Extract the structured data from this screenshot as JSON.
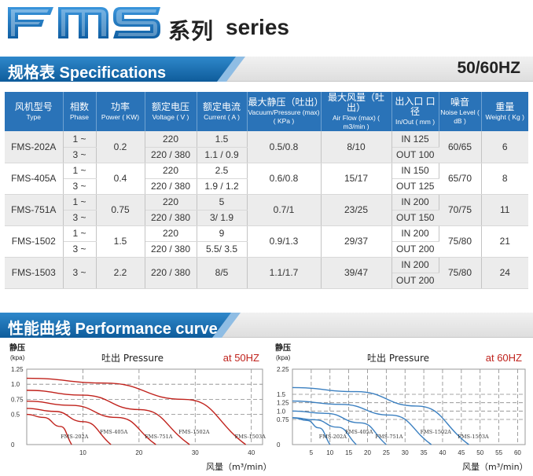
{
  "header": {
    "logo_text": "FMS",
    "title_cn": "系列",
    "title_en": "series"
  },
  "spec_section": {
    "title": "规格表 Specifications",
    "frequency": "50/60HZ"
  },
  "table": {
    "headers": [
      {
        "cn": "风机型号",
        "en": "Type"
      },
      {
        "cn": "相数",
        "en": "Phase"
      },
      {
        "cn": "功率",
        "en": "Power ( KW)"
      },
      {
        "cn": "额定电压",
        "en": "Voltage ( V )"
      },
      {
        "cn": "额定电流",
        "en": "Current ( A )"
      },
      {
        "cn": "最大静压（吐出）",
        "en": "Vacuum/Pressure (max) ( KPa )"
      },
      {
        "cn": "最大风量（吐出）",
        "en": "Air Flow (max) ( m3/min )"
      },
      {
        "cn": "出入口 口径",
        "en": "In/Out ( mm )"
      },
      {
        "cn": "噪音",
        "en": "Noise Level ( dB )"
      },
      {
        "cn": "重量",
        "en": "Weight ( Kg )"
      }
    ],
    "rows": [
      {
        "type": "FMS-202A",
        "phase": [
          "1 ~",
          "3 ~"
        ],
        "power": "0.2",
        "voltage": [
          "220",
          "220 / 380"
        ],
        "current": [
          "1.5",
          "1.1 / 0.9"
        ],
        "pressure": "0.5/0.8",
        "airflow": "8/10",
        "inout": [
          "IN 125",
          "OUT 100"
        ],
        "noise": "60/65",
        "weight": "6"
      },
      {
        "type": "FMS-405A",
        "phase": [
          "1 ~",
          "3 ~"
        ],
        "power": "0.4",
        "voltage": [
          "220",
          "220 / 380"
        ],
        "current": [
          "2.5",
          "1.9 / 1.2"
        ],
        "pressure": "0.6/0.8",
        "airflow": "15/17",
        "inout": [
          "IN 150",
          "OUT 125"
        ],
        "noise": "65/70",
        "weight": "8"
      },
      {
        "type": "FMS-751A",
        "phase": [
          "1 ~",
          "3 ~"
        ],
        "power": "0.75",
        "voltage": [
          "220",
          "220 / 380"
        ],
        "current": [
          "5",
          "3/ 1.9"
        ],
        "pressure": "0.7/1",
        "airflow": "23/25",
        "inout": [
          "IN 200",
          "OUT 150"
        ],
        "noise": "70/75",
        "weight": "11"
      },
      {
        "type": "FMS-1502",
        "phase": [
          "1 ~",
          "3 ~"
        ],
        "power": "1.5",
        "voltage": [
          "220",
          "220 / 380"
        ],
        "current": [
          "9",
          "5.5/ 3.5"
        ],
        "pressure": "0.9/1.3",
        "airflow": "29/37",
        "inout": [
          "IN 200",
          "OUT 200"
        ],
        "noise": "75/80",
        "weight": "21"
      },
      {
        "type": "FMS-1503",
        "phase": [
          "3 ~"
        ],
        "power": "2.2",
        "voltage": [
          "220 / 380"
        ],
        "current": [
          "8/5"
        ],
        "pressure": "1.1/1.7",
        "airflow": "39/47",
        "inout": [
          "IN 200",
          "OUT 200"
        ],
        "noise": "75/80",
        "weight": "24"
      }
    ]
  },
  "perf_section": {
    "title": "性能曲线 Performance curve"
  },
  "chart_data": [
    {
      "type": "line",
      "title": "吐出 Pressure",
      "frequency_label": "at 50HZ",
      "ylabel": "静压",
      "ylabel_unit": "(kpa)",
      "xlabel": "风量（m³/min）",
      "xlim": [
        0,
        42
      ],
      "ylim": [
        0,
        1.25
      ],
      "xticks": [
        "10",
        "20",
        "30",
        "40"
      ],
      "yticks": [
        "0",
        "0.5",
        "0.75",
        "1.0",
        "1.25"
      ],
      "grid": true,
      "color": "#c0221c",
      "series": [
        {
          "name": "FMS-202A",
          "x": [
            0,
            3,
            6,
            8
          ],
          "y": [
            0.5,
            0.45,
            0.3,
            0
          ]
        },
        {
          "name": "FMS-405A",
          "x": [
            0,
            5,
            10,
            15
          ],
          "y": [
            0.6,
            0.55,
            0.38,
            0
          ]
        },
        {
          "name": "FMS-751A",
          "x": [
            0,
            8,
            16,
            23
          ],
          "y": [
            0.72,
            0.65,
            0.45,
            0
          ]
        },
        {
          "name": "FMS-1502A",
          "x": [
            0,
            10,
            20,
            29
          ],
          "y": [
            0.9,
            0.82,
            0.58,
            0
          ]
        },
        {
          "name": "FMS-1503A",
          "x": [
            0,
            14,
            28,
            39
          ],
          "y": [
            1.1,
            1.02,
            0.75,
            0
          ]
        }
      ]
    },
    {
      "type": "line",
      "title": "吐出 Pressure",
      "frequency_label": "at 60HZ",
      "ylabel": "静压",
      "ylabel_unit": "(kpa)",
      "xlabel": "风量（m³/min）",
      "xlim": [
        0,
        62
      ],
      "ylim": [
        0,
        2.25
      ],
      "xticks": [
        "5",
        "10",
        "15",
        "20",
        "25",
        "30",
        "35",
        "40",
        "45",
        "50",
        "55",
        "60"
      ],
      "yticks": [
        "0",
        "0.75",
        "1.0",
        "1.25",
        "1.5",
        "2.25"
      ],
      "grid": true,
      "color": "#3a7fc0",
      "series": [
        {
          "name": "FMS-202A",
          "x": [
            0,
            4,
            7,
            10
          ],
          "y": [
            0.8,
            0.72,
            0.5,
            0
          ]
        },
        {
          "name": "FMS-405A",
          "x": [
            0,
            6,
            12,
            17
          ],
          "y": [
            0.8,
            0.74,
            0.52,
            0
          ]
        },
        {
          "name": "FMS-751A",
          "x": [
            0,
            9,
            18,
            25
          ],
          "y": [
            1.0,
            0.93,
            0.65,
            0
          ]
        },
        {
          "name": "FMS-1502A",
          "x": [
            0,
            13,
            26,
            37
          ],
          "y": [
            1.3,
            1.2,
            0.88,
            0
          ]
        },
        {
          "name": "FMS-1503A",
          "x": [
            0,
            17,
            33,
            47
          ],
          "y": [
            1.7,
            1.58,
            1.15,
            0
          ]
        }
      ]
    }
  ]
}
